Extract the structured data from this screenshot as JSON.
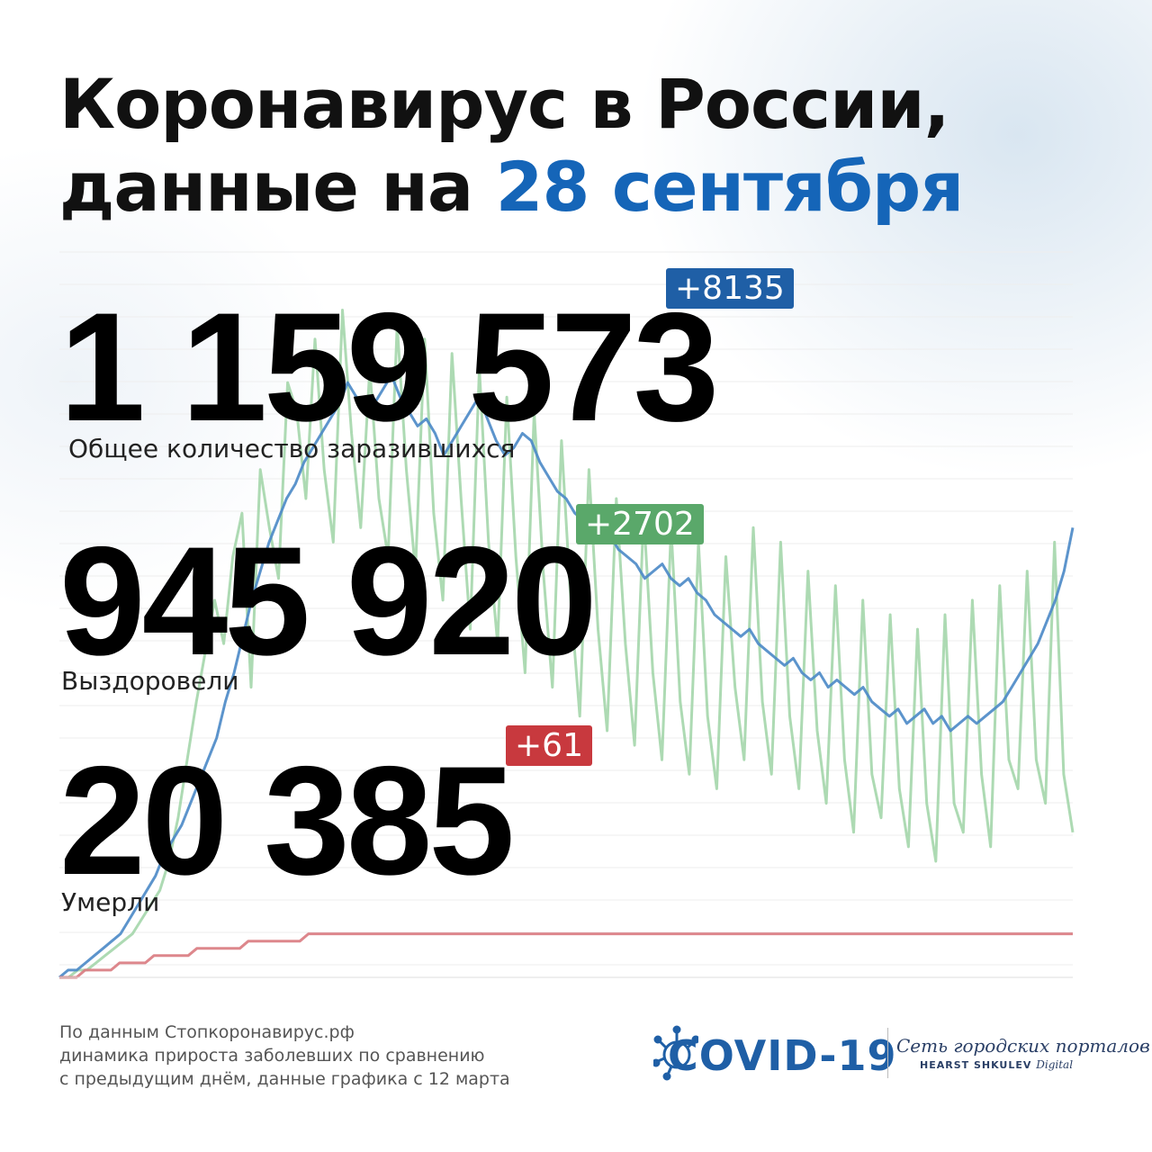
{
  "title": {
    "line1": "Коронавирус в России,",
    "line2_prefix": "данные на ",
    "line2_date": "28 сентября"
  },
  "stats": {
    "infected": {
      "value": "1 159 573",
      "delta": "+8135",
      "label": "Общее количество заразившихся"
    },
    "recovered": {
      "value": "945 920",
      "delta": "+2702",
      "label": "Выздоровели"
    },
    "deaths": {
      "value": "20 385",
      "delta": "+61",
      "label": "Умерли"
    }
  },
  "footer": {
    "line1": "По данным Стопкоронавирус.рф",
    "line2": "динамика прироста заболевших по сравнению",
    "line3": "с предыдущим днём, данные графика с 12 марта"
  },
  "brand": {
    "covid": "COVID-19",
    "network": "Сеть городских порталов",
    "company": "HEARST SHKULEV",
    "company_suffix": "Digital"
  },
  "colors": {
    "accent_blue": "#1565b8",
    "infected_badge": "#1f5fa6",
    "recovered_badge": "#5aa86a",
    "deaths_badge": "#c8393e",
    "infected_line": "#4a88c7",
    "recovered_line": "#9fd4a6",
    "deaths_line": "#d97a80"
  },
  "chart_data": {
    "type": "line",
    "series": [
      {
        "values": [
          0,
          1,
          1,
          2,
          3,
          4,
          5,
          6,
          8,
          10,
          12,
          14,
          17,
          19,
          21,
          24,
          27,
          30,
          33,
          38,
          42,
          47,
          52,
          56,
          60,
          63,
          66,
          68,
          71,
          73,
          75,
          77,
          79,
          82,
          80,
          78,
          79,
          81,
          83,
          80,
          78,
          76,
          77,
          75,
          72,
          74,
          76,
          78,
          80,
          77,
          74,
          72,
          73,
          75,
          74,
          71,
          69,
          67,
          66,
          64,
          63,
          62,
          60,
          61,
          59,
          58,
          57,
          55,
          56,
          57,
          55,
          54,
          55,
          53,
          52,
          50,
          49,
          48,
          47,
          48,
          46,
          45,
          44,
          43,
          44,
          42,
          41,
          42,
          40,
          41,
          40,
          39,
          40,
          38,
          37,
          36,
          37,
          35,
          36,
          37,
          35,
          36,
          34,
          35,
          36,
          35,
          36,
          37,
          38,
          40,
          42,
          44,
          46,
          49,
          52,
          56,
          62
        ]
      },
      {
        "values": [
          0,
          0,
          1,
          1,
          2,
          3,
          4,
          5,
          6,
          8,
          10,
          12,
          16,
          22,
          30,
          38,
          45,
          52,
          46,
          58,
          64,
          40,
          70,
          62,
          55,
          82,
          78,
          66,
          88,
          70,
          60,
          92,
          75,
          62,
          84,
          66,
          58,
          90,
          70,
          56,
          88,
          64,
          52,
          86,
          66,
          48,
          84,
          60,
          46,
          80,
          58,
          42,
          78,
          56,
          40,
          74,
          52,
          36,
          70,
          48,
          34,
          66,
          46,
          32,
          64,
          42,
          30,
          62,
          38,
          28,
          60,
          36,
          26,
          58,
          40,
          30,
          62,
          38,
          28,
          60,
          36,
          26,
          56,
          34,
          24,
          54,
          30,
          20,
          52,
          28,
          22,
          50,
          26,
          18,
          48,
          24,
          16,
          50,
          24,
          20,
          52,
          28,
          18,
          54,
          30,
          26,
          56,
          30,
          24,
          60,
          28,
          20
        ]
      },
      {
        "values": [
          0,
          0,
          0,
          1,
          1,
          1,
          1,
          2,
          2,
          2,
          2,
          3,
          3,
          3,
          3,
          3,
          4,
          4,
          4,
          4,
          4,
          4,
          5,
          5,
          5,
          5,
          5,
          5,
          5,
          6,
          6,
          6,
          6,
          6,
          6,
          6,
          6,
          6,
          6,
          6,
          6,
          6,
          6,
          6,
          6,
          6,
          6,
          6,
          6,
          6,
          6,
          6,
          6,
          6,
          6,
          6,
          6,
          6,
          6,
          6,
          6,
          6,
          6,
          6,
          6,
          6,
          6,
          6,
          6,
          6,
          6,
          6,
          6,
          6,
          6,
          6,
          6,
          6,
          6,
          6,
          6,
          6,
          6,
          6,
          6,
          6,
          6,
          6,
          6,
          6,
          6,
          6,
          6,
          6,
          6,
          6,
          6,
          6,
          6,
          6,
          6,
          6,
          6,
          6,
          6,
          6,
          6,
          6,
          6,
          6,
          6,
          6,
          6,
          6,
          6,
          6,
          6,
          6,
          6
        ]
      }
    ]
  }
}
